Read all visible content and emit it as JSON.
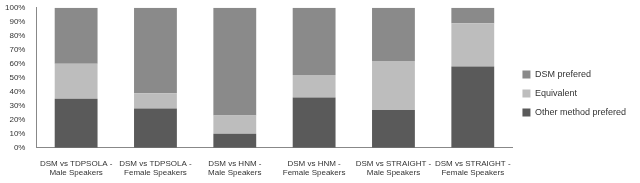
{
  "chart_data": {
    "type": "bar",
    "stacked": true,
    "grid": false,
    "legend": "right",
    "categories": [
      "DSM vs TDPSOLA - Male Speakers",
      "DSM vs TDPSOLA - Female Speakers",
      "DSM vs HNM - Male Speakers",
      "DSM vs HNM - Female Speakers",
      "DSM vs STRAIGHT - Male Speakers",
      "DSM vs STRAIGHT - Female Speakers"
    ],
    "series": [
      {
        "name": "Other method prefered",
        "color": "#5a5a5a",
        "values": [
          35,
          28,
          10,
          36,
          27,
          58
        ]
      },
      {
        "name": "Equivalent",
        "color": "#bdbdbd",
        "values": [
          25,
          11,
          13,
          16,
          35,
          31
        ]
      },
      {
        "name": "DSM prefered",
        "color": "#8a8a8a",
        "values": [
          40,
          61,
          77,
          48,
          38,
          11
        ]
      }
    ],
    "ylim": [
      0,
      100
    ],
    "yticks": [
      {
        "value": 0,
        "label": "0%"
      },
      {
        "value": 10,
        "label": "10%"
      },
      {
        "value": 20,
        "label": "20%"
      },
      {
        "value": 30,
        "label": "30%"
      },
      {
        "value": 40,
        "label": "40%"
      },
      {
        "value": 50,
        "label": "50%"
      },
      {
        "value": 60,
        "label": "60%"
      },
      {
        "value": 70,
        "label": "70%"
      },
      {
        "value": 80,
        "label": "80%"
      },
      {
        "value": 90,
        "label": "90%"
      },
      {
        "value": 100,
        "label": "100%"
      }
    ]
  }
}
